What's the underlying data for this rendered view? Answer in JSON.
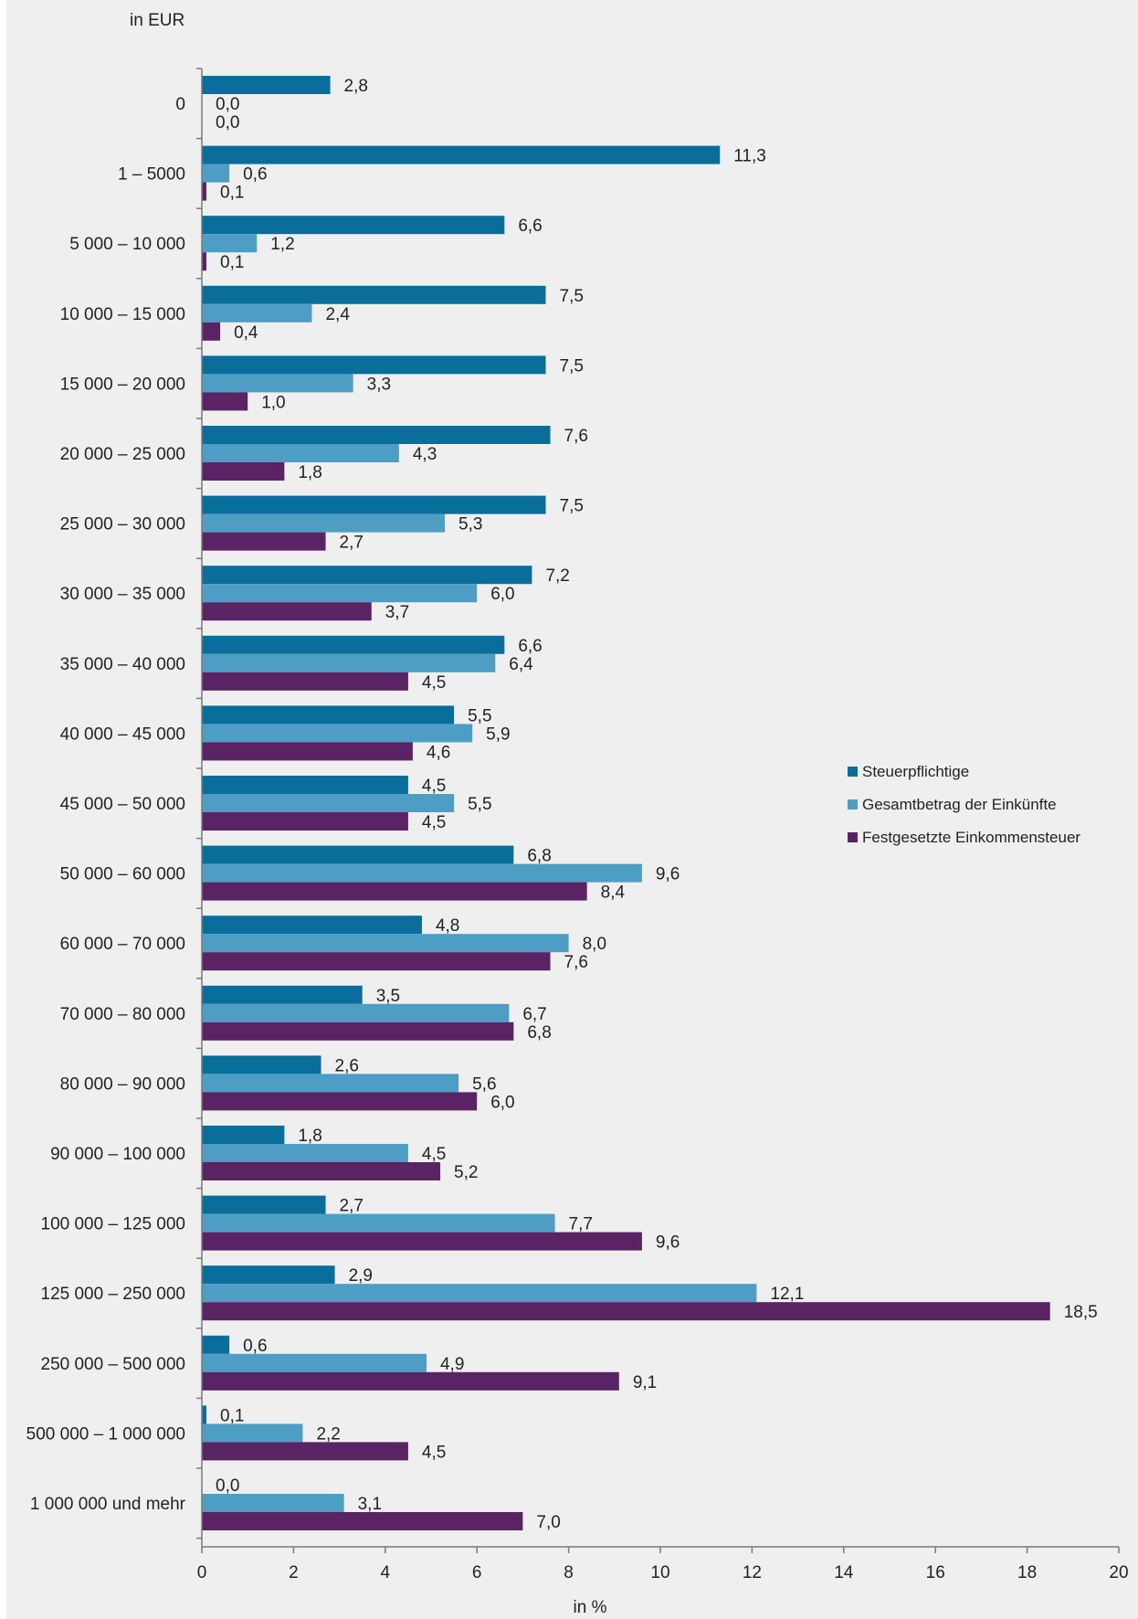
{
  "chart_data": {
    "type": "bar",
    "orientation": "horizontal",
    "y_axis_title": "in EUR",
    "x_axis_title": "in %",
    "xlim": [
      0,
      20
    ],
    "x_ticks": [
      "0",
      "2",
      "4",
      "6",
      "8",
      "10",
      "12",
      "14",
      "16",
      "18",
      "20"
    ],
    "grid": false,
    "legend_position": "right",
    "categories": [
      "0",
      "1 – 5000",
      "5 000 – 10 000",
      "10 000 – 15 000",
      "15 000 – 20 000",
      "20 000 – 25 000",
      "25 000 – 30 000",
      "30 000 – 35 000",
      "35 000 – 40 000",
      "40 000 – 45 000",
      "45 000 – 50 000",
      "50 000 – 60 000",
      "60 000 – 70 000",
      "70 000 – 80 000",
      "80 000 – 90 000",
      "90 000 – 100 000",
      "100 000 – 125 000",
      "125 000 – 250 000",
      "250 000 – 500 000",
      "500 000 – 1 000 000",
      "1 000 000 und mehr"
    ],
    "series": [
      {
        "name": "Steuerpflichtige",
        "color": "#0a6e9c",
        "values": [
          2.8,
          11.3,
          6.6,
          7.5,
          7.5,
          7.6,
          7.5,
          7.2,
          6.6,
          5.5,
          4.5,
          6.8,
          4.8,
          3.5,
          2.6,
          1.8,
          2.7,
          2.9,
          0.6,
          0.1,
          0.0
        ],
        "labels": [
          "2,8",
          "11,3",
          "6,6",
          "7,5",
          "7,5",
          "7,6",
          "7,5",
          "7,2",
          "6,6",
          "5,5",
          "4,5",
          "6,8",
          "4,8",
          "3,5",
          "2,6",
          "1,8",
          "2,7",
          "2,9",
          "0,6",
          "0,1",
          "0,0"
        ]
      },
      {
        "name": "Gesamtbetrag der Einkünfte",
        "color": "#4e9dc4",
        "values": [
          0.0,
          0.6,
          1.2,
          2.4,
          3.3,
          4.3,
          5.3,
          6.0,
          6.4,
          5.9,
          5.5,
          9.6,
          8.0,
          6.7,
          5.6,
          4.5,
          7.7,
          12.1,
          4.9,
          2.2,
          3.1
        ],
        "labels": [
          "0,0",
          "0,6",
          "1,2",
          "2,4",
          "3,3",
          "4,3",
          "5,3",
          "6,0",
          "6,4",
          "5,9",
          "5,5",
          "9,6",
          "8,0",
          "6,7",
          "5,6",
          "4,5",
          "7,7",
          "12,1",
          "4,9",
          "2,2",
          "3,1"
        ]
      },
      {
        "name": "Festgesetzte Einkommensteuer",
        "color": "#5a2464",
        "values": [
          0.0,
          0.1,
          0.1,
          0.4,
          1.0,
          1.8,
          2.7,
          3.7,
          4.5,
          4.6,
          4.5,
          8.4,
          7.6,
          6.8,
          6.0,
          5.2,
          9.6,
          18.5,
          9.1,
          4.5,
          7.0
        ],
        "labels": [
          "0,0",
          "0,1",
          "0,1",
          "0,4",
          "1,0",
          "1,8",
          "2,7",
          "3,7",
          "4,5",
          "4,6",
          "4,5",
          "8,4",
          "7,6",
          "6,8",
          "6,0",
          "5,2",
          "9,6",
          "18,5",
          "9,1",
          "4,5",
          "7,0"
        ]
      }
    ]
  }
}
